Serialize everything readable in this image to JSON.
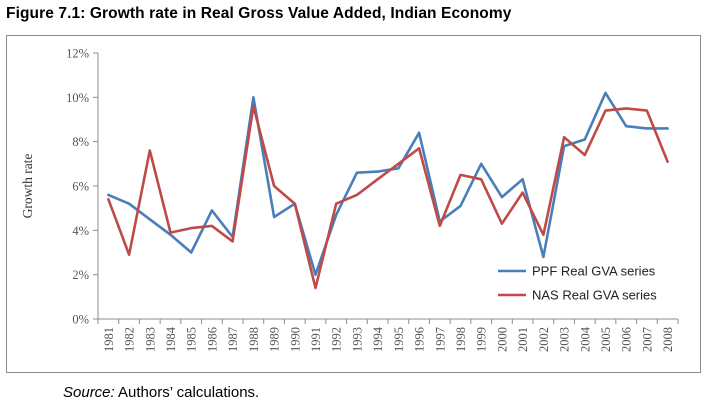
{
  "figure": {
    "title": "Figure 7.1: Growth rate in Real Gross Value Added, Indian Economy"
  },
  "source": {
    "label": "Source:",
    "text": " Authors’ calculations."
  },
  "colors": {
    "ppf": "#4a7ebb",
    "nas": "#be4b48",
    "axis": "#8c8c8c",
    "frame": "#8c8c8c"
  },
  "chart_data": {
    "type": "line",
    "title": "",
    "xlabel": "",
    "ylabel": "Growth rate",
    "ylim": [
      0,
      12
    ],
    "y_tick_values": [
      0,
      2,
      4,
      6,
      8,
      10,
      12
    ],
    "y_tick_labels": [
      "0%",
      "2%",
      "4%",
      "6%",
      "8%",
      "10%",
      "12%"
    ],
    "grid": false,
    "legend_position": "bottom-right",
    "categories": [
      "1981",
      "1982",
      "1983",
      "1984",
      "1985",
      "1986",
      "1987",
      "1988",
      "1989",
      "1990",
      "1991",
      "1992",
      "1993",
      "1994",
      "1995",
      "1996",
      "1997",
      "1998",
      "1999",
      "2000",
      "2001",
      "2002",
      "2003",
      "2004",
      "2005",
      "2006",
      "2007",
      "2008"
    ],
    "series": [
      {
        "name": "PPF Real GVA series",
        "color": "#4a7ebb",
        "values": [
          5.6,
          5.2,
          4.5,
          3.8,
          3.0,
          4.9,
          3.7,
          10.0,
          4.6,
          5.2,
          2.0,
          4.7,
          6.6,
          6.65,
          6.8,
          8.4,
          4.4,
          5.1,
          7.0,
          5.5,
          6.3,
          2.8,
          7.8,
          8.1,
          10.2,
          8.7,
          8.6,
          8.6
        ]
      },
      {
        "name": "NAS Real GVA series",
        "color": "#be4b48",
        "values": [
          5.4,
          2.9,
          7.6,
          3.9,
          4.1,
          4.2,
          3.5,
          9.6,
          6.0,
          5.2,
          1.4,
          5.2,
          5.6,
          6.3,
          7.0,
          7.7,
          4.2,
          6.5,
          6.3,
          4.3,
          5.7,
          3.8,
          8.2,
          7.4,
          9.4,
          9.5,
          9.4,
          7.1
        ]
      }
    ]
  }
}
